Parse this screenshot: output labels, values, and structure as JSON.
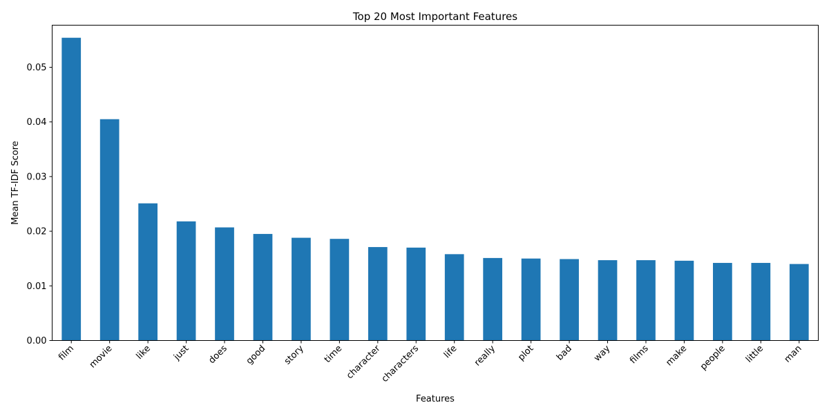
{
  "chart_data": {
    "type": "bar",
    "title": "Top 20 Most Important Features",
    "xlabel": "Features",
    "ylabel": "Mean TF-IDF Score",
    "categories": [
      "film",
      "movie",
      "like",
      "just",
      "does",
      "good",
      "story",
      "time",
      "character",
      "characters",
      "life",
      "really",
      "plot",
      "bad",
      "way",
      "films",
      "make",
      "people",
      "little",
      "man"
    ],
    "values": [
      0.0554,
      0.0405,
      0.0251,
      0.0218,
      0.0207,
      0.0195,
      0.0188,
      0.0186,
      0.0171,
      0.017,
      0.0158,
      0.0151,
      0.015,
      0.0149,
      0.0147,
      0.0147,
      0.0146,
      0.0142,
      0.0142,
      0.014
    ],
    "ylim": [
      0,
      0.0577
    ],
    "yticks": [
      "0.00",
      "0.01",
      "0.02",
      "0.03",
      "0.04",
      "0.05"
    ],
    "bar_color": "#1f77b4",
    "grid": false,
    "legend": false
  }
}
